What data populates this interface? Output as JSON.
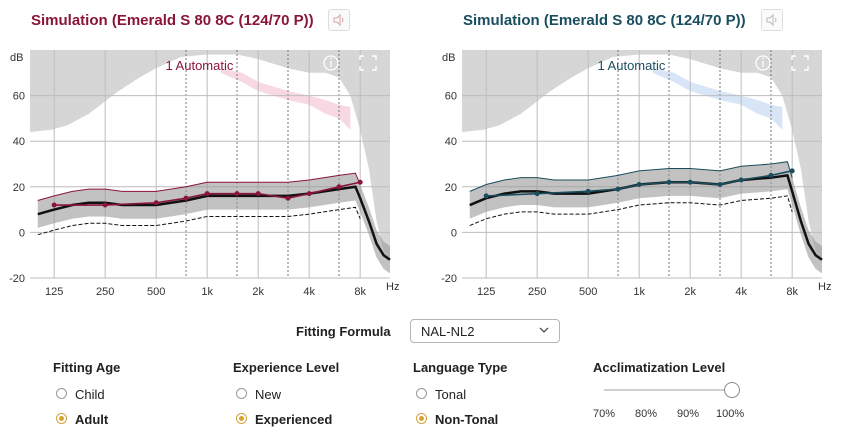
{
  "left_panel": {
    "title": "Simulation (Emerald S 80 8C (124/70 P))",
    "title_color": "#8a1538",
    "mode_label": "1 Automatic",
    "speaker_icon": "speaker-muted-icon",
    "info_icon": "info-icon",
    "expand_icon": "expand-icon"
  },
  "right_panel": {
    "title": "Simulation (Emerald S 80 8C (124/70 P))",
    "title_color": "#1a4e5e",
    "mode_label": "1 Automatic",
    "speaker_icon": "speaker-muted-icon",
    "info_icon": "info-icon",
    "expand_icon": "expand-icon"
  },
  "axis": {
    "y_unit": "dB",
    "x_unit": "Hz",
    "y_ticks": [
      "60",
      "40",
      "20",
      "0",
      "-20"
    ],
    "x_ticks": [
      "125",
      "250",
      "500",
      "1k",
      "2k",
      "4k",
      "8k"
    ]
  },
  "chart_data": [
    {
      "type": "line",
      "title": "Simulation (Emerald S 80 8C (124/70 P))",
      "xlabel": "Hz",
      "ylabel": "dB",
      "x_scale": "log",
      "xlim": [
        90,
        12000
      ],
      "ylim": [
        -20,
        80
      ],
      "grid": true,
      "annotation": "1 Automatic",
      "series": [
        {
          "role": "target",
          "color": "#8a1538",
          "x": [
            125,
            250,
            500,
            750,
            1000,
            1500,
            2000,
            3000,
            4000,
            6000,
            8000
          ],
          "y": [
            12,
            12,
            13,
            15,
            17,
            17,
            17,
            15,
            17,
            20,
            22
          ]
        },
        {
          "role": "response",
          "color": "#111111",
          "x": [
            100,
            125,
            160,
            200,
            250,
            315,
            400,
            500,
            750,
            1000,
            1500,
            2000,
            3000,
            4000,
            6000,
            7500,
            8000,
            9000,
            10000,
            11000,
            12000
          ],
          "y": [
            8,
            10,
            12,
            13,
            13,
            12,
            12,
            12,
            14,
            16,
            16,
            16,
            16,
            17,
            19,
            20,
            15,
            5,
            -5,
            -10,
            -12
          ]
        }
      ]
    },
    {
      "type": "line",
      "title": "Simulation (Emerald S 80 8C (124/70 P))",
      "xlabel": "Hz",
      "ylabel": "dB",
      "x_scale": "log",
      "xlim": [
        90,
        12000
      ],
      "ylim": [
        -20,
        80
      ],
      "grid": true,
      "annotation": "1 Automatic",
      "series": [
        {
          "role": "target",
          "color": "#1a4e5e",
          "x": [
            125,
            250,
            500,
            750,
            1000,
            1500,
            2000,
            3000,
            4000,
            6000,
            8000
          ],
          "y": [
            16,
            17,
            18,
            19,
            21,
            22,
            22,
            21,
            23,
            25,
            27
          ]
        },
        {
          "role": "response",
          "color": "#111111",
          "x": [
            100,
            125,
            160,
            200,
            250,
            315,
            400,
            500,
            750,
            1000,
            1500,
            2000,
            3000,
            4000,
            6000,
            7500,
            8000,
            9000,
            10000,
            11000,
            12000
          ],
          "y": [
            12,
            15,
            17,
            18,
            18,
            17,
            17,
            17,
            19,
            21,
            22,
            22,
            21,
            23,
            24,
            25,
            18,
            5,
            -5,
            -10,
            -12
          ]
        }
      ]
    }
  ],
  "fitting_formula": {
    "label": "Fitting Formula",
    "value": "NAL-NL2"
  },
  "fitting_age": {
    "title": "Fitting Age",
    "options": [
      {
        "label": "Child",
        "selected": false
      },
      {
        "label": "Adult",
        "selected": true
      }
    ]
  },
  "experience_level": {
    "title": "Experience Level",
    "options": [
      {
        "label": "New",
        "selected": false
      },
      {
        "label": "Experienced",
        "selected": true
      }
    ]
  },
  "language_type": {
    "title": "Language Type",
    "options": [
      {
        "label": "Tonal",
        "selected": false
      },
      {
        "label": "Non-Tonal",
        "selected": true
      }
    ]
  },
  "acclimatization": {
    "title": "Acclimatization Level",
    "ticks": [
      "70%",
      "80%",
      "90%",
      "100%"
    ],
    "value": "100%"
  }
}
